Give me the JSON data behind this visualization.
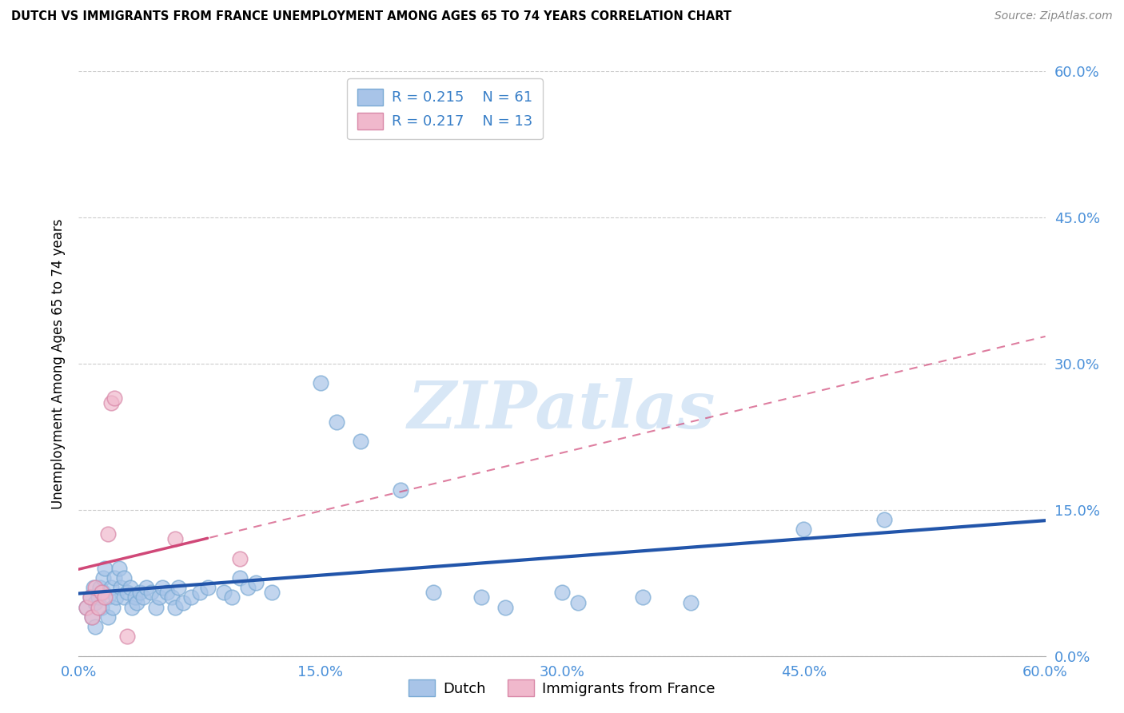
{
  "title": "DUTCH VS IMMIGRANTS FROM FRANCE UNEMPLOYMENT AMONG AGES 65 TO 74 YEARS CORRELATION CHART",
  "source": "Source: ZipAtlas.com",
  "ylabel": "Unemployment Among Ages 65 to 74 years",
  "xmin": 0.0,
  "xmax": 0.6,
  "ymin": 0.0,
  "ymax": 0.6,
  "ytick_labels": [
    "0.0%",
    "15.0%",
    "30.0%",
    "45.0%",
    "60.0%"
  ],
  "ytick_values": [
    0.0,
    0.15,
    0.3,
    0.45,
    0.6
  ],
  "xtick_labels": [
    "0.0%",
    "15.0%",
    "30.0%",
    "45.0%",
    "60.0%"
  ],
  "xtick_values": [
    0.0,
    0.15,
    0.3,
    0.45,
    0.6
  ],
  "dutch_R": 0.215,
  "dutch_N": 61,
  "france_R": 0.217,
  "france_N": 13,
  "dutch_color": "#a8c4e8",
  "dutch_edge_color": "#7aaad4",
  "dutch_line_color": "#2255aa",
  "france_color": "#f0b8cc",
  "france_edge_color": "#d888a8",
  "france_line_color": "#d04878",
  "watermark": "ZIPatlas",
  "dutch_points": [
    [
      0.005,
      0.05
    ],
    [
      0.007,
      0.06
    ],
    [
      0.008,
      0.04
    ],
    [
      0.009,
      0.07
    ],
    [
      0.01,
      0.055
    ],
    [
      0.01,
      0.03
    ],
    [
      0.012,
      0.06
    ],
    [
      0.013,
      0.07
    ],
    [
      0.014,
      0.05
    ],
    [
      0.015,
      0.08
    ],
    [
      0.015,
      0.065
    ],
    [
      0.016,
      0.09
    ],
    [
      0.018,
      0.06
    ],
    [
      0.018,
      0.04
    ],
    [
      0.02,
      0.07
    ],
    [
      0.021,
      0.05
    ],
    [
      0.022,
      0.08
    ],
    [
      0.023,
      0.06
    ],
    [
      0.025,
      0.09
    ],
    [
      0.026,
      0.07
    ],
    [
      0.028,
      0.06
    ],
    [
      0.028,
      0.08
    ],
    [
      0.03,
      0.065
    ],
    [
      0.032,
      0.07
    ],
    [
      0.033,
      0.05
    ],
    [
      0.035,
      0.06
    ],
    [
      0.036,
      0.055
    ],
    [
      0.038,
      0.065
    ],
    [
      0.04,
      0.06
    ],
    [
      0.042,
      0.07
    ],
    [
      0.045,
      0.065
    ],
    [
      0.048,
      0.05
    ],
    [
      0.05,
      0.06
    ],
    [
      0.052,
      0.07
    ],
    [
      0.055,
      0.065
    ],
    [
      0.058,
      0.06
    ],
    [
      0.06,
      0.05
    ],
    [
      0.062,
      0.07
    ],
    [
      0.065,
      0.055
    ],
    [
      0.07,
      0.06
    ],
    [
      0.075,
      0.065
    ],
    [
      0.08,
      0.07
    ],
    [
      0.09,
      0.065
    ],
    [
      0.095,
      0.06
    ],
    [
      0.1,
      0.08
    ],
    [
      0.105,
      0.07
    ],
    [
      0.11,
      0.075
    ],
    [
      0.12,
      0.065
    ],
    [
      0.15,
      0.28
    ],
    [
      0.16,
      0.24
    ],
    [
      0.175,
      0.22
    ],
    [
      0.2,
      0.17
    ],
    [
      0.22,
      0.065
    ],
    [
      0.25,
      0.06
    ],
    [
      0.265,
      0.05
    ],
    [
      0.3,
      0.065
    ],
    [
      0.31,
      0.055
    ],
    [
      0.35,
      0.06
    ],
    [
      0.38,
      0.055
    ],
    [
      0.45,
      0.13
    ],
    [
      0.5,
      0.14
    ]
  ],
  "france_points": [
    [
      0.005,
      0.05
    ],
    [
      0.007,
      0.06
    ],
    [
      0.008,
      0.04
    ],
    [
      0.01,
      0.07
    ],
    [
      0.012,
      0.05
    ],
    [
      0.014,
      0.065
    ],
    [
      0.016,
      0.06
    ],
    [
      0.018,
      0.125
    ],
    [
      0.02,
      0.26
    ],
    [
      0.022,
      0.265
    ],
    [
      0.03,
      0.02
    ],
    [
      0.06,
      0.12
    ],
    [
      0.1,
      0.1
    ]
  ],
  "background_color": "#ffffff",
  "grid_color": "#cccccc"
}
